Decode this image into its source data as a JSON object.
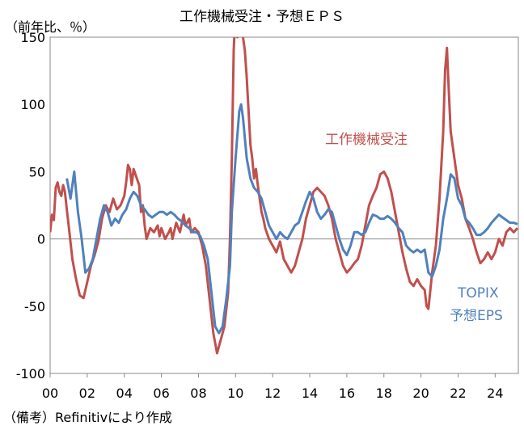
{
  "chart_data": {
    "type": "line",
    "title": "工作機械受注・予想ＥＰＳ",
    "ylabel": "（前年比、％）",
    "note": "（備考）Refinitivにより作成",
    "ylim": [
      -100,
      150
    ],
    "xlim": [
      2000.0,
      2025.25
    ],
    "yticks": [
      -100,
      -50,
      0,
      50,
      100,
      150
    ],
    "xticks": [
      {
        "x": 2000,
        "label": "00"
      },
      {
        "x": 2002,
        "label": "02"
      },
      {
        "x": 2004,
        "label": "04"
      },
      {
        "x": 2006,
        "label": "06"
      },
      {
        "x": 2008,
        "label": "08"
      },
      {
        "x": 2010,
        "label": "10"
      },
      {
        "x": 2012,
        "label": "12"
      },
      {
        "x": 2014,
        "label": "14"
      },
      {
        "x": 2016,
        "label": "16"
      },
      {
        "x": 2018,
        "label": "18"
      },
      {
        "x": 2020,
        "label": "20"
      },
      {
        "x": 2022,
        "label": "22"
      },
      {
        "x": 2024,
        "label": "24"
      }
    ],
    "grid": false,
    "series": [
      {
        "name": "工作機械受注",
        "color": "#c0504d",
        "points": [
          [
            2000.0,
            5
          ],
          [
            2000.1,
            18
          ],
          [
            2000.2,
            14
          ],
          [
            2000.3,
            38
          ],
          [
            2000.4,
            42
          ],
          [
            2000.5,
            35
          ],
          [
            2000.6,
            32
          ],
          [
            2000.7,
            40
          ],
          [
            2000.8,
            35
          ],
          [
            2000.9,
            22
          ],
          [
            2001.0,
            10
          ],
          [
            2001.2,
            -15
          ],
          [
            2001.4,
            -30
          ],
          [
            2001.6,
            -42
          ],
          [
            2001.8,
            -44
          ],
          [
            2002.0,
            -32
          ],
          [
            2002.2,
            -20
          ],
          [
            2002.4,
            -12
          ],
          [
            2002.6,
            -2
          ],
          [
            2002.8,
            15
          ],
          [
            2003.0,
            25
          ],
          [
            2003.2,
            20
          ],
          [
            2003.4,
            30
          ],
          [
            2003.6,
            22
          ],
          [
            2003.8,
            25
          ],
          [
            2004.0,
            32
          ],
          [
            2004.1,
            42
          ],
          [
            2004.2,
            55
          ],
          [
            2004.3,
            52
          ],
          [
            2004.4,
            40
          ],
          [
            2004.5,
            52
          ],
          [
            2004.6,
            48
          ],
          [
            2004.8,
            40
          ],
          [
            2004.9,
            20
          ],
          [
            2005.0,
            25
          ],
          [
            2005.1,
            10
          ],
          [
            2005.2,
            0
          ],
          [
            2005.4,
            8
          ],
          [
            2005.6,
            5
          ],
          [
            2005.8,
            10
          ],
          [
            2005.9,
            2
          ],
          [
            2006.0,
            8
          ],
          [
            2006.2,
            0
          ],
          [
            2006.4,
            5
          ],
          [
            2006.5,
            8
          ],
          [
            2006.6,
            0
          ],
          [
            2006.8,
            12
          ],
          [
            2007.0,
            5
          ],
          [
            2007.2,
            18
          ],
          [
            2007.3,
            10
          ],
          [
            2007.5,
            15
          ],
          [
            2007.6,
            5
          ],
          [
            2007.8,
            8
          ],
          [
            2008.0,
            5
          ],
          [
            2008.2,
            -5
          ],
          [
            2008.4,
            -20
          ],
          [
            2008.6,
            -45
          ],
          [
            2008.8,
            -70
          ],
          [
            2009.0,
            -85
          ],
          [
            2009.2,
            -75
          ],
          [
            2009.4,
            -65
          ],
          [
            2009.6,
            -40
          ],
          [
            2009.7,
            0
          ],
          [
            2009.8,
            60
          ],
          [
            2009.9,
            140
          ],
          [
            2010.0,
            170
          ],
          [
            2010.1,
            150
          ],
          [
            2010.2,
            175
          ],
          [
            2010.3,
            170
          ],
          [
            2010.4,
            150
          ],
          [
            2010.5,
            140
          ],
          [
            2010.6,
            120
          ],
          [
            2010.7,
            95
          ],
          [
            2010.8,
            70
          ],
          [
            2010.9,
            60
          ],
          [
            2011.0,
            45
          ],
          [
            2011.1,
            52
          ],
          [
            2011.2,
            40
          ],
          [
            2011.3,
            30
          ],
          [
            2011.4,
            20
          ],
          [
            2011.5,
            15
          ],
          [
            2011.6,
            8
          ],
          [
            2011.8,
            0
          ],
          [
            2012.0,
            -5
          ],
          [
            2012.2,
            -10
          ],
          [
            2012.4,
            -2
          ],
          [
            2012.6,
            -15
          ],
          [
            2012.8,
            -20
          ],
          [
            2013.0,
            -25
          ],
          [
            2013.2,
            -20
          ],
          [
            2013.4,
            -10
          ],
          [
            2013.6,
            0
          ],
          [
            2013.8,
            15
          ],
          [
            2014.0,
            25
          ],
          [
            2014.2,
            35
          ],
          [
            2014.4,
            38
          ],
          [
            2014.6,
            35
          ],
          [
            2014.8,
            32
          ],
          [
            2015.0,
            25
          ],
          [
            2015.2,
            15
          ],
          [
            2015.4,
            0
          ],
          [
            2015.6,
            -10
          ],
          [
            2015.8,
            -20
          ],
          [
            2016.0,
            -25
          ],
          [
            2016.2,
            -22
          ],
          [
            2016.4,
            -18
          ],
          [
            2016.6,
            -15
          ],
          [
            2016.8,
            -5
          ],
          [
            2017.0,
            10
          ],
          [
            2017.2,
            25
          ],
          [
            2017.4,
            32
          ],
          [
            2017.6,
            38
          ],
          [
            2017.8,
            48
          ],
          [
            2018.0,
            50
          ],
          [
            2018.2,
            45
          ],
          [
            2018.4,
            35
          ],
          [
            2018.6,
            20
          ],
          [
            2018.8,
            5
          ],
          [
            2019.0,
            -10
          ],
          [
            2019.2,
            -22
          ],
          [
            2019.4,
            -32
          ],
          [
            2019.6,
            -35
          ],
          [
            2019.8,
            -30
          ],
          [
            2020.0,
            -35
          ],
          [
            2020.2,
            -38
          ],
          [
            2020.3,
            -50
          ],
          [
            2020.4,
            -52
          ],
          [
            2020.6,
            -25
          ],
          [
            2020.8,
            -5
          ],
          [
            2021.0,
            30
          ],
          [
            2021.2,
            80
          ],
          [
            2021.3,
            125
          ],
          [
            2021.4,
            142
          ],
          [
            2021.5,
            110
          ],
          [
            2021.6,
            80
          ],
          [
            2021.8,
            60
          ],
          [
            2022.0,
            40
          ],
          [
            2022.2,
            30
          ],
          [
            2022.4,
            15
          ],
          [
            2022.6,
            8
          ],
          [
            2022.8,
            0
          ],
          [
            2023.0,
            -10
          ],
          [
            2023.2,
            -18
          ],
          [
            2023.4,
            -15
          ],
          [
            2023.6,
            -10
          ],
          [
            2023.8,
            -15
          ],
          [
            2024.0,
            -10
          ],
          [
            2024.2,
            0
          ],
          [
            2024.4,
            -5
          ],
          [
            2024.6,
            5
          ],
          [
            2024.8,
            8
          ],
          [
            2025.0,
            5
          ],
          [
            2025.2,
            8
          ]
        ]
      },
      {
        "name": "TOPIX 予想EPS",
        "color": "#4f81bd",
        "points": [
          [
            2000.9,
            45
          ],
          [
            2001.1,
            30
          ],
          [
            2001.3,
            50
          ],
          [
            2001.5,
            20
          ],
          [
            2001.7,
            0
          ],
          [
            2001.9,
            -25
          ],
          [
            2002.1,
            -22
          ],
          [
            2002.3,
            -15
          ],
          [
            2002.5,
            0
          ],
          [
            2002.7,
            15
          ],
          [
            2002.9,
            25
          ],
          [
            2003.1,
            20
          ],
          [
            2003.3,
            10
          ],
          [
            2003.5,
            15
          ],
          [
            2003.7,
            12
          ],
          [
            2003.9,
            18
          ],
          [
            2004.1,
            22
          ],
          [
            2004.3,
            30
          ],
          [
            2004.5,
            35
          ],
          [
            2004.7,
            32
          ],
          [
            2004.9,
            25
          ],
          [
            2005.1,
            22
          ],
          [
            2005.3,
            18
          ],
          [
            2005.5,
            16
          ],
          [
            2005.7,
            18
          ],
          [
            2005.9,
            20
          ],
          [
            2006.1,
            20
          ],
          [
            2006.3,
            18
          ],
          [
            2006.5,
            20
          ],
          [
            2006.7,
            18
          ],
          [
            2006.9,
            15
          ],
          [
            2007.1,
            13
          ],
          [
            2007.3,
            10
          ],
          [
            2007.5,
            8
          ],
          [
            2007.7,
            5
          ],
          [
            2007.9,
            5
          ],
          [
            2008.1,
            2
          ],
          [
            2008.3,
            -5
          ],
          [
            2008.5,
            -15
          ],
          [
            2008.7,
            -40
          ],
          [
            2008.9,
            -65
          ],
          [
            2009.1,
            -70
          ],
          [
            2009.3,
            -65
          ],
          [
            2009.5,
            -45
          ],
          [
            2009.7,
            -20
          ],
          [
            2009.8,
            20
          ],
          [
            2010.0,
            60
          ],
          [
            2010.2,
            95
          ],
          [
            2010.3,
            100
          ],
          [
            2010.4,
            90
          ],
          [
            2010.6,
            60
          ],
          [
            2010.8,
            45
          ],
          [
            2011.0,
            38
          ],
          [
            2011.2,
            35
          ],
          [
            2011.4,
            30
          ],
          [
            2011.6,
            20
          ],
          [
            2011.8,
            10
          ],
          [
            2012.0,
            5
          ],
          [
            2012.2,
            0
          ],
          [
            2012.4,
            5
          ],
          [
            2012.6,
            2
          ],
          [
            2012.8,
            0
          ],
          [
            2013.0,
            5
          ],
          [
            2013.2,
            10
          ],
          [
            2013.4,
            12
          ],
          [
            2013.6,
            20
          ],
          [
            2013.8,
            28
          ],
          [
            2014.0,
            35
          ],
          [
            2014.2,
            30
          ],
          [
            2014.4,
            20
          ],
          [
            2014.6,
            15
          ],
          [
            2014.8,
            18
          ],
          [
            2015.0,
            22
          ],
          [
            2015.2,
            20
          ],
          [
            2015.4,
            10
          ],
          [
            2015.6,
            0
          ],
          [
            2015.8,
            -8
          ],
          [
            2016.0,
            -12
          ],
          [
            2016.2,
            -5
          ],
          [
            2016.4,
            5
          ],
          [
            2016.6,
            5
          ],
          [
            2016.8,
            3
          ],
          [
            2017.0,
            5
          ],
          [
            2017.2,
            12
          ],
          [
            2017.4,
            18
          ],
          [
            2017.6,
            17
          ],
          [
            2017.8,
            15
          ],
          [
            2018.0,
            15
          ],
          [
            2018.2,
            17
          ],
          [
            2018.4,
            15
          ],
          [
            2018.6,
            12
          ],
          [
            2018.8,
            8
          ],
          [
            2019.0,
            5
          ],
          [
            2019.2,
            -5
          ],
          [
            2019.4,
            -8
          ],
          [
            2019.6,
            -10
          ],
          [
            2019.8,
            -8
          ],
          [
            2020.0,
            -10
          ],
          [
            2020.2,
            -8
          ],
          [
            2020.4,
            -25
          ],
          [
            2020.6,
            -28
          ],
          [
            2020.8,
            -20
          ],
          [
            2021.0,
            -8
          ],
          [
            2021.2,
            15
          ],
          [
            2021.4,
            30
          ],
          [
            2021.6,
            48
          ],
          [
            2021.8,
            45
          ],
          [
            2022.0,
            30
          ],
          [
            2022.2,
            25
          ],
          [
            2022.4,
            15
          ],
          [
            2022.6,
            12
          ],
          [
            2022.8,
            8
          ],
          [
            2023.0,
            3
          ],
          [
            2023.2,
            3
          ],
          [
            2023.4,
            5
          ],
          [
            2023.6,
            8
          ],
          [
            2023.8,
            12
          ],
          [
            2024.0,
            15
          ],
          [
            2024.2,
            18
          ],
          [
            2024.4,
            16
          ],
          [
            2024.6,
            14
          ],
          [
            2024.8,
            12
          ],
          [
            2025.0,
            12
          ],
          [
            2025.2,
            11
          ]
        ]
      }
    ],
    "annotations": [
      {
        "text": "工作機械受注",
        "series": 0
      },
      {
        "text": "TOPIX",
        "series": 1
      },
      {
        "text": "予想EPS",
        "series": 1
      }
    ]
  }
}
